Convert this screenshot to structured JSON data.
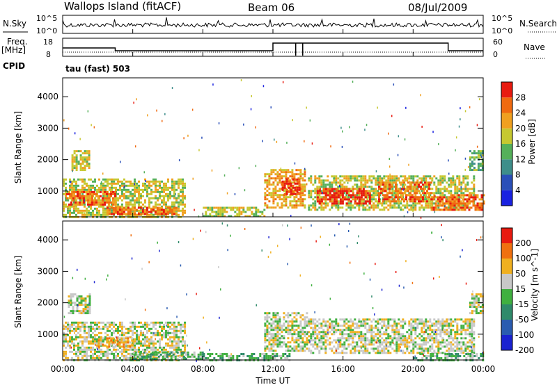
{
  "header": {
    "title": "Wallops Island (fitACF)",
    "beam": "Beam 06",
    "date": "08/Jul/2009"
  },
  "noise_panel": {
    "left_label": "N.Sky",
    "left_ticks": [
      "10^5",
      "10^0"
    ],
    "right_label": "N.Search",
    "right_ticks": [
      "10^5",
      "10^0"
    ]
  },
  "freq_panel": {
    "left_label": "Freq.",
    "left_unit": "[MHz]",
    "left_ticks": [
      "18",
      "8"
    ],
    "right_label": "Nave",
    "right_ticks": [
      "60",
      "0"
    ],
    "cpid_label": "CPID",
    "cpid_value": "tau (fast) 503"
  },
  "chart_data": [
    {
      "type": "heatmap",
      "panel": "power",
      "ylabel": "Slant Range [km]",
      "ylim": [
        180,
        4600
      ],
      "y_ticks": [
        "1000",
        "2000",
        "3000",
        "4000"
      ],
      "colorbar_label": "Power [dB]",
      "colorbar_ticks": [
        "4",
        "8",
        "12",
        "16",
        "20",
        "24",
        "28"
      ],
      "colors": [
        "#1a22e0",
        "#2a4fb8",
        "#3e8e8a",
        "#55b05a",
        "#c6c830",
        "#f0a020",
        "#f06a10",
        "#e81a10"
      ],
      "regions": [
        {
          "t0": 0.0,
          "t1": 7.0,
          "r0": 200,
          "r1": 1400,
          "level": 4
        },
        {
          "t0": 0.2,
          "t1": 3.0,
          "r0": 600,
          "r1": 1000,
          "level": 6
        },
        {
          "t0": 0.5,
          "t1": 1.5,
          "r0": 1700,
          "r1": 2300,
          "level": 4
        },
        {
          "t0": 2.5,
          "t1": 6.5,
          "r0": 300,
          "r1": 500,
          "level": 6
        },
        {
          "t0": 8.0,
          "t1": 11.5,
          "r0": 200,
          "r1": 500,
          "level": 4
        },
        {
          "t0": 11.5,
          "t1": 13.8,
          "r0": 500,
          "r1": 1700,
          "level": 5
        },
        {
          "t0": 12.5,
          "t1": 13.5,
          "r0": 900,
          "r1": 1400,
          "level": 7
        },
        {
          "t0": 14.0,
          "t1": 23.5,
          "r0": 400,
          "r1": 1500,
          "level": 4
        },
        {
          "t0": 14.5,
          "t1": 17.5,
          "r0": 600,
          "r1": 1100,
          "level": 7
        },
        {
          "t0": 18.0,
          "t1": 21.0,
          "r0": 700,
          "r1": 1300,
          "level": 6
        },
        {
          "t0": 21.0,
          "t1": 24.0,
          "r0": 400,
          "r1": 900,
          "level": 6
        },
        {
          "t0": 23.2,
          "t1": 24.0,
          "r0": 1700,
          "r1": 2300,
          "level": 3
        }
      ]
    },
    {
      "type": "heatmap",
      "panel": "velocity",
      "ylabel": "Slant Range [km]",
      "ylim": [
        180,
        4600
      ],
      "y_ticks": [
        "1000",
        "2000",
        "3000",
        "4000"
      ],
      "colorbar_label": "Velocity [m s^-1]",
      "colorbar_ticks": [
        "200",
        "100",
        "50",
        "15",
        "-15",
        "-50",
        "-100",
        "-200"
      ],
      "colors": [
        "#1a22d0",
        "#2a5cb0",
        "#2f8a6a",
        "#40b040",
        "#c8c8c8",
        "#f0b020",
        "#f07010",
        "#e81a10"
      ],
      "regions": [
        {
          "t0": 0.0,
          "t1": 7.0,
          "r0": 200,
          "r1": 1400,
          "level": 4
        },
        {
          "t0": 0.3,
          "t1": 1.5,
          "r0": 1700,
          "r1": 2300,
          "level": 4
        },
        {
          "t0": 2.0,
          "t1": 4.0,
          "r0": 600,
          "r1": 900,
          "level": 5
        },
        {
          "t0": 4.0,
          "t1": 8.0,
          "r0": 250,
          "r1": 450,
          "level": 3
        },
        {
          "t0": 8.0,
          "t1": 13.0,
          "r0": 200,
          "r1": 400,
          "level": 3
        },
        {
          "t0": 11.5,
          "t1": 14.0,
          "r0": 500,
          "r1": 1700,
          "level": 4
        },
        {
          "t0": 14.0,
          "t1": 23.5,
          "r0": 400,
          "r1": 1500,
          "level": 4
        },
        {
          "t0": 20.0,
          "t1": 24.0,
          "r0": 200,
          "r1": 400,
          "level": 3
        },
        {
          "t0": 23.2,
          "t1": 24.0,
          "r0": 1700,
          "r1": 2300,
          "level": 4
        }
      ]
    }
  ],
  "x_axis": {
    "label": "Time UT",
    "ticks": [
      "00:00",
      "04:00",
      "08:00",
      "12:00",
      "16:00",
      "20:00",
      "00:00"
    ]
  }
}
